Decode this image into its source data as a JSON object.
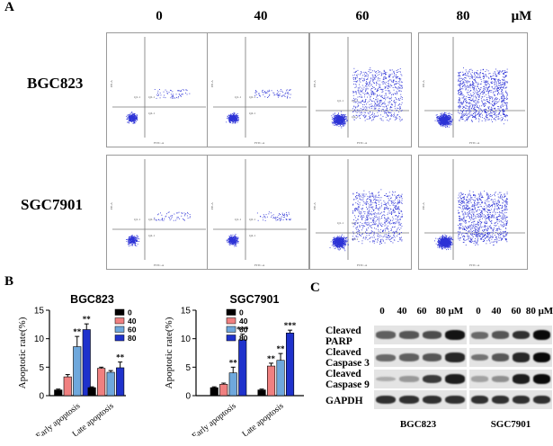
{
  "panels": {
    "a": "A",
    "b": "B",
    "c": "C"
  },
  "panel_a": {
    "concentrations": [
      "0",
      "40",
      "60",
      "80"
    ],
    "unit": "μM",
    "cell_lines": [
      "BGC823",
      "SGC7901"
    ],
    "flow_axes": {
      "x": "FITC-A",
      "y": "PE-A"
    },
    "quadrants": [
      "Q1-1",
      "Q2-1",
      "Q4-1"
    ]
  },
  "chart_data": [
    {
      "type": "bar",
      "title": "BGC823",
      "ylabel": "Apoptotic rate(%)",
      "ylim": [
        0,
        15
      ],
      "yticks": [
        0,
        5,
        10,
        15
      ],
      "categories": [
        "Early apoptosis",
        "Late apoptosis"
      ],
      "legend_position": "top-right",
      "series": [
        {
          "name": "0",
          "color": "#000000",
          "values": [
            1.0,
            1.4
          ],
          "errors": [
            0.15,
            0.15
          ]
        },
        {
          "name": "40",
          "color": "#f08080",
          "values": [
            3.3,
            4.8
          ],
          "errors": [
            0.4,
            0.2
          ]
        },
        {
          "name": "60",
          "color": "#6fa8dc",
          "values": [
            8.6,
            4.1
          ],
          "errors": [
            1.8,
            0.3
          ]
        },
        {
          "name": "80",
          "color": "#1f32cc",
          "values": [
            11.6,
            4.9
          ],
          "errors": [
            1.0,
            1.0
          ]
        }
      ],
      "annotations": [
        {
          "category": 0,
          "series": 2,
          "text": "**"
        },
        {
          "category": 0,
          "series": 3,
          "text": "**"
        },
        {
          "category": 1,
          "series": 3,
          "text": "**"
        }
      ]
    },
    {
      "type": "bar",
      "title": "SGC7901",
      "ylabel": "Apoptotic rate(%)",
      "ylim": [
        0,
        15
      ],
      "yticks": [
        0,
        5,
        10,
        15
      ],
      "categories": [
        "Early apoptosis",
        "Late apoptosis"
      ],
      "legend_position": "top-right",
      "series": [
        {
          "name": "0",
          "color": "#000000",
          "values": [
            1.4,
            1.0
          ],
          "errors": [
            0.15,
            0.15
          ]
        },
        {
          "name": "40",
          "color": "#f08080",
          "values": [
            2.0,
            5.2
          ],
          "errors": [
            0.2,
            0.5
          ]
        },
        {
          "name": "60",
          "color": "#6fa8dc",
          "values": [
            4.0,
            6.2
          ],
          "errors": [
            1.0,
            1.2
          ]
        },
        {
          "name": "80",
          "color": "#1f32cc",
          "values": [
            9.8,
            11.0
          ],
          "errors": [
            1.0,
            0.5
          ]
        }
      ],
      "annotations": [
        {
          "category": 0,
          "series": 2,
          "text": "**"
        },
        {
          "category": 0,
          "series": 3,
          "text": "***"
        },
        {
          "category": 1,
          "series": 1,
          "text": "**"
        },
        {
          "category": 1,
          "series": 2,
          "text": "**"
        },
        {
          "category": 1,
          "series": 3,
          "text": "***"
        }
      ]
    }
  ],
  "panel_c": {
    "concentrations": [
      "0",
      "40",
      "60",
      "80 μM"
    ],
    "proteins": [
      {
        "line1": "Cleaved",
        "line2": "PARP"
      },
      {
        "line1": "Cleaved",
        "line2": "Caspase 3"
      },
      {
        "line1": "Cleaved",
        "line2": "Caspase 9"
      },
      {
        "line1": "GAPDH",
        "line2": ""
      }
    ],
    "cell_lines": [
      "BGC823",
      "SGC7901"
    ]
  }
}
